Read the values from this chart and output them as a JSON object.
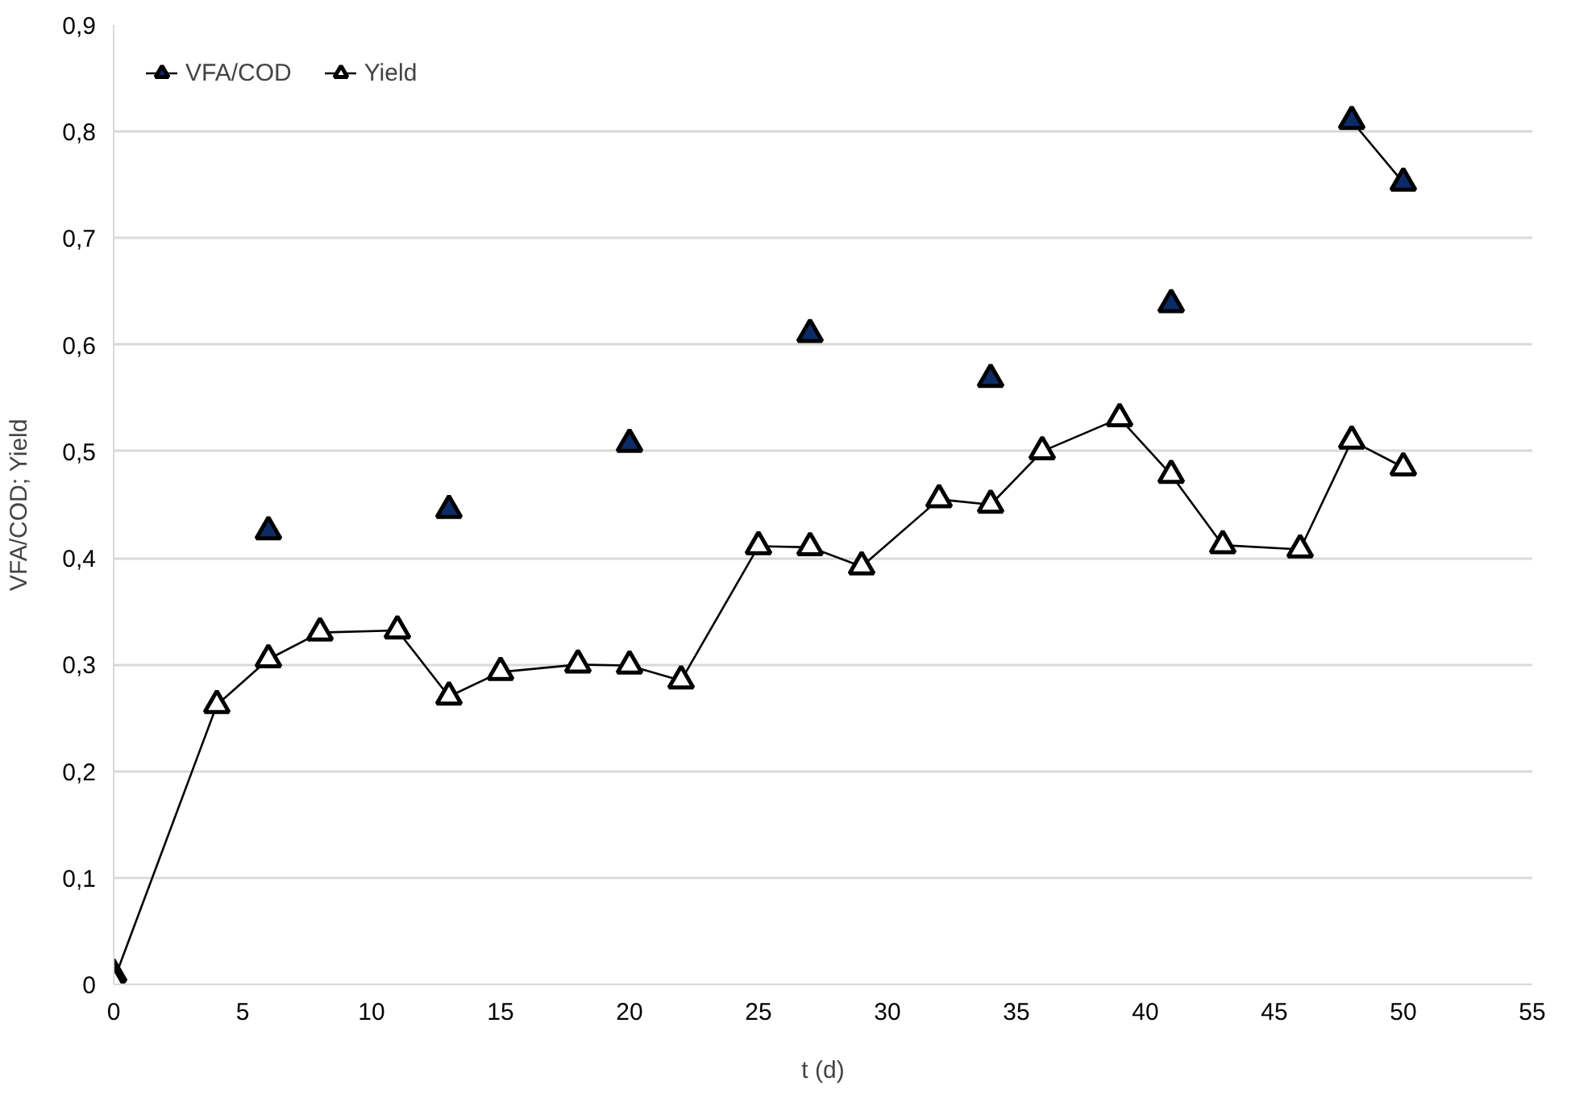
{
  "chart_data": {
    "type": "line",
    "xlabel": "t (d)",
    "ylabel": "VFA/COD; Yield",
    "x": [
      0,
      4,
      6,
      8,
      11,
      13,
      15,
      18,
      20,
      22,
      25,
      27,
      29,
      32,
      34,
      36,
      39,
      41,
      43,
      46,
      48,
      50
    ],
    "series": [
      {
        "name": "VFA/COD",
        "color": "#0d2b66",
        "values": [
          0.01,
          null,
          0.425,
          null,
          null,
          0.445,
          null,
          null,
          0.507,
          null,
          null,
          0.61,
          null,
          null,
          0.568,
          null,
          null,
          0.638,
          null,
          null,
          0.81,
          0.752
        ]
      },
      {
        "name": "Yield",
        "color": "#ffffff",
        "values": [
          0.003,
          0.262,
          0.305,
          0.33,
          0.332,
          0.27,
          0.293,
          0.3,
          0.299,
          0.285,
          0.411,
          0.41,
          0.392,
          0.455,
          0.45,
          0.5,
          0.531,
          0.478,
          0.412,
          0.408,
          0.51,
          0.485
        ]
      }
    ],
    "xlim": [
      0,
      55
    ],
    "ylim": [
      0,
      0.9
    ],
    "xticks": [
      0,
      5,
      10,
      15,
      20,
      25,
      30,
      35,
      40,
      45,
      50,
      55
    ],
    "yticks": [
      0,
      {
        "value": 0.1,
        "label": "0,1"
      },
      {
        "value": 0.2,
        "label": "0,2"
      },
      {
        "value": 0.3,
        "label": "0,3"
      },
      {
        "value": 0.4,
        "label": "0,4"
      },
      {
        "value": 0.5,
        "label": "0,5"
      },
      {
        "value": 0.6,
        "label": "0,6"
      },
      {
        "value": 0.7,
        "label": "0,7"
      },
      {
        "value": 0.8,
        "label": "0,8"
      },
      {
        "value": 0.9,
        "label": "0,9"
      }
    ],
    "grid": "y",
    "legend": "top left",
    "marker": "triangle",
    "line_style": "solid"
  }
}
